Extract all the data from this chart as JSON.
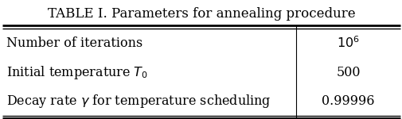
{
  "title": "TABLE I. Parameters for annealing procedure",
  "rows": [
    [
      "Number of iterations",
      "$10^6$"
    ],
    [
      "Initial temperature $T_0$",
      "500"
    ],
    [
      "Decay rate $\\gamma$ for temperature scheduling",
      "0.99996"
    ]
  ],
  "col_split": 0.735,
  "bg_color": "#ffffff",
  "title_fontsize": 12,
  "cell_fontsize": 11.5
}
